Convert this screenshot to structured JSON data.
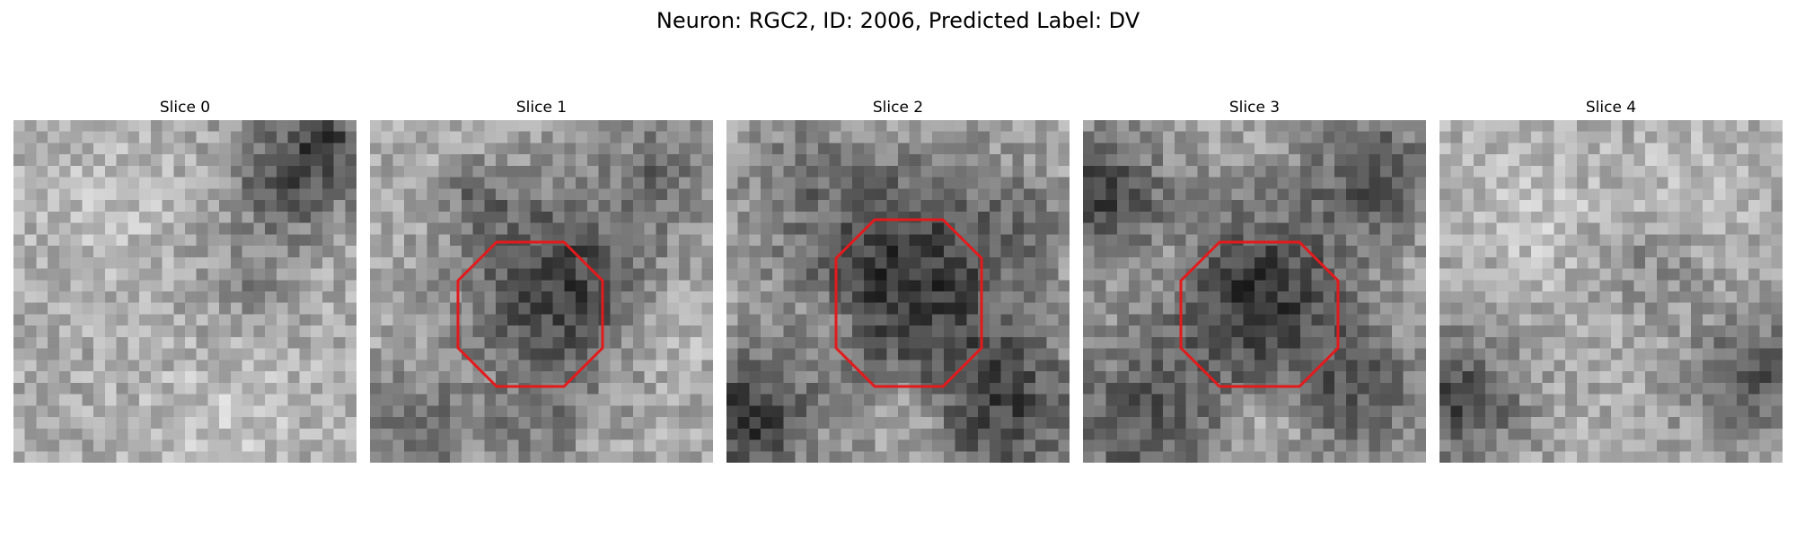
{
  "figure": {
    "title": "Neuron: RGC2, ID: 2006, Predicted Label: DV"
  },
  "panels": [
    {
      "title": "Slice 0",
      "roi": false
    },
    {
      "title": "Slice 1",
      "roi": true
    },
    {
      "title": "Slice 2",
      "roi": true
    },
    {
      "title": "Slice 3",
      "roi": true
    },
    {
      "title": "Slice 4",
      "roi": false
    }
  ],
  "colors": {
    "roi_outline": "#e31a1c",
    "background": "#ffffff"
  }
}
